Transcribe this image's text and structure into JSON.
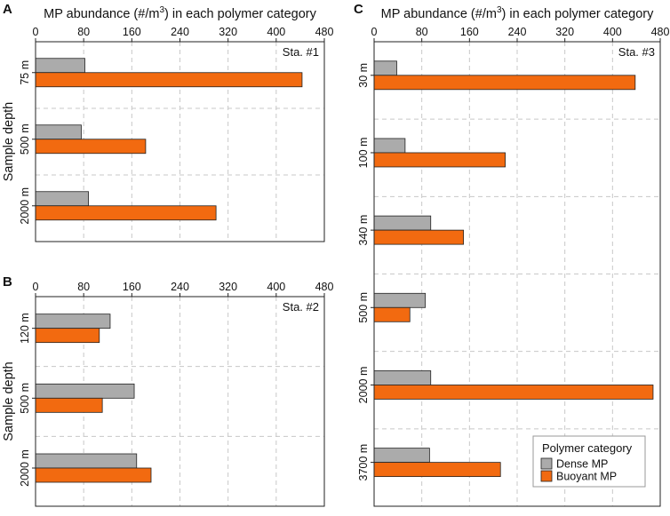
{
  "colors": {
    "dense": "#ababab",
    "buoyant": "#f26a10",
    "grid": "#c8c8c8"
  },
  "shared_axis_title": "MP abundance (#/m",
  "shared_axis_sup": "3",
  "shared_axis_title_tail": ") in each polymer category",
  "y_axis_title": "Sample depth",
  "legend": {
    "title": "Polymer category",
    "entries": [
      {
        "name": "Dense MP",
        "series": "dense"
      },
      {
        "name": "Buoyant MP",
        "series": "buoyant"
      }
    ]
  },
  "chart_data": [
    {
      "type": "bar",
      "panel": "A",
      "station": "Sta. #1",
      "orientation": "horizontal",
      "xlim": [
        0,
        480
      ],
      "xticks": [
        0,
        80,
        160,
        240,
        320,
        400,
        480
      ],
      "xlabel": "MP abundance (#/m3) in each polymer category",
      "ylabel": "Sample depth",
      "categories": [
        "75 m",
        "500 m",
        "2000 m"
      ],
      "series": [
        {
          "name": "Dense MP",
          "values": [
            82,
            76,
            88
          ]
        },
        {
          "name": "Buoyant MP",
          "values": [
            443,
            183,
            300
          ]
        }
      ]
    },
    {
      "type": "bar",
      "panel": "B",
      "station": "Sta. #2",
      "orientation": "horizontal",
      "xlim": [
        0,
        480
      ],
      "xticks": [
        0,
        80,
        160,
        240,
        320,
        400,
        480
      ],
      "xlabel": "",
      "ylabel": "Sample depth",
      "categories": [
        "120 m",
        "500 m",
        "2000 m"
      ],
      "series": [
        {
          "name": "Dense MP",
          "values": [
            124,
            164,
            168
          ]
        },
        {
          "name": "Buoyant MP",
          "values": [
            106,
            111,
            192
          ]
        }
      ]
    },
    {
      "type": "bar",
      "panel": "C",
      "station": "Sta. #3",
      "orientation": "horizontal",
      "xlim": [
        0,
        480
      ],
      "xticks": [
        0,
        80,
        160,
        240,
        320,
        400,
        480
      ],
      "xlabel": "MP abundance (#/m3) in each polymer category",
      "ylabel": "",
      "categories": [
        "30 m",
        "100 m",
        "340 m",
        "500 m",
        "2000 m",
        "3700 m"
      ],
      "series": [
        {
          "name": "Dense MP",
          "values": [
            38,
            52,
            95,
            86,
            95,
            93
          ]
        },
        {
          "name": "Buoyant MP",
          "values": [
            438,
            220,
            150,
            60,
            468,
            212
          ]
        }
      ]
    }
  ]
}
